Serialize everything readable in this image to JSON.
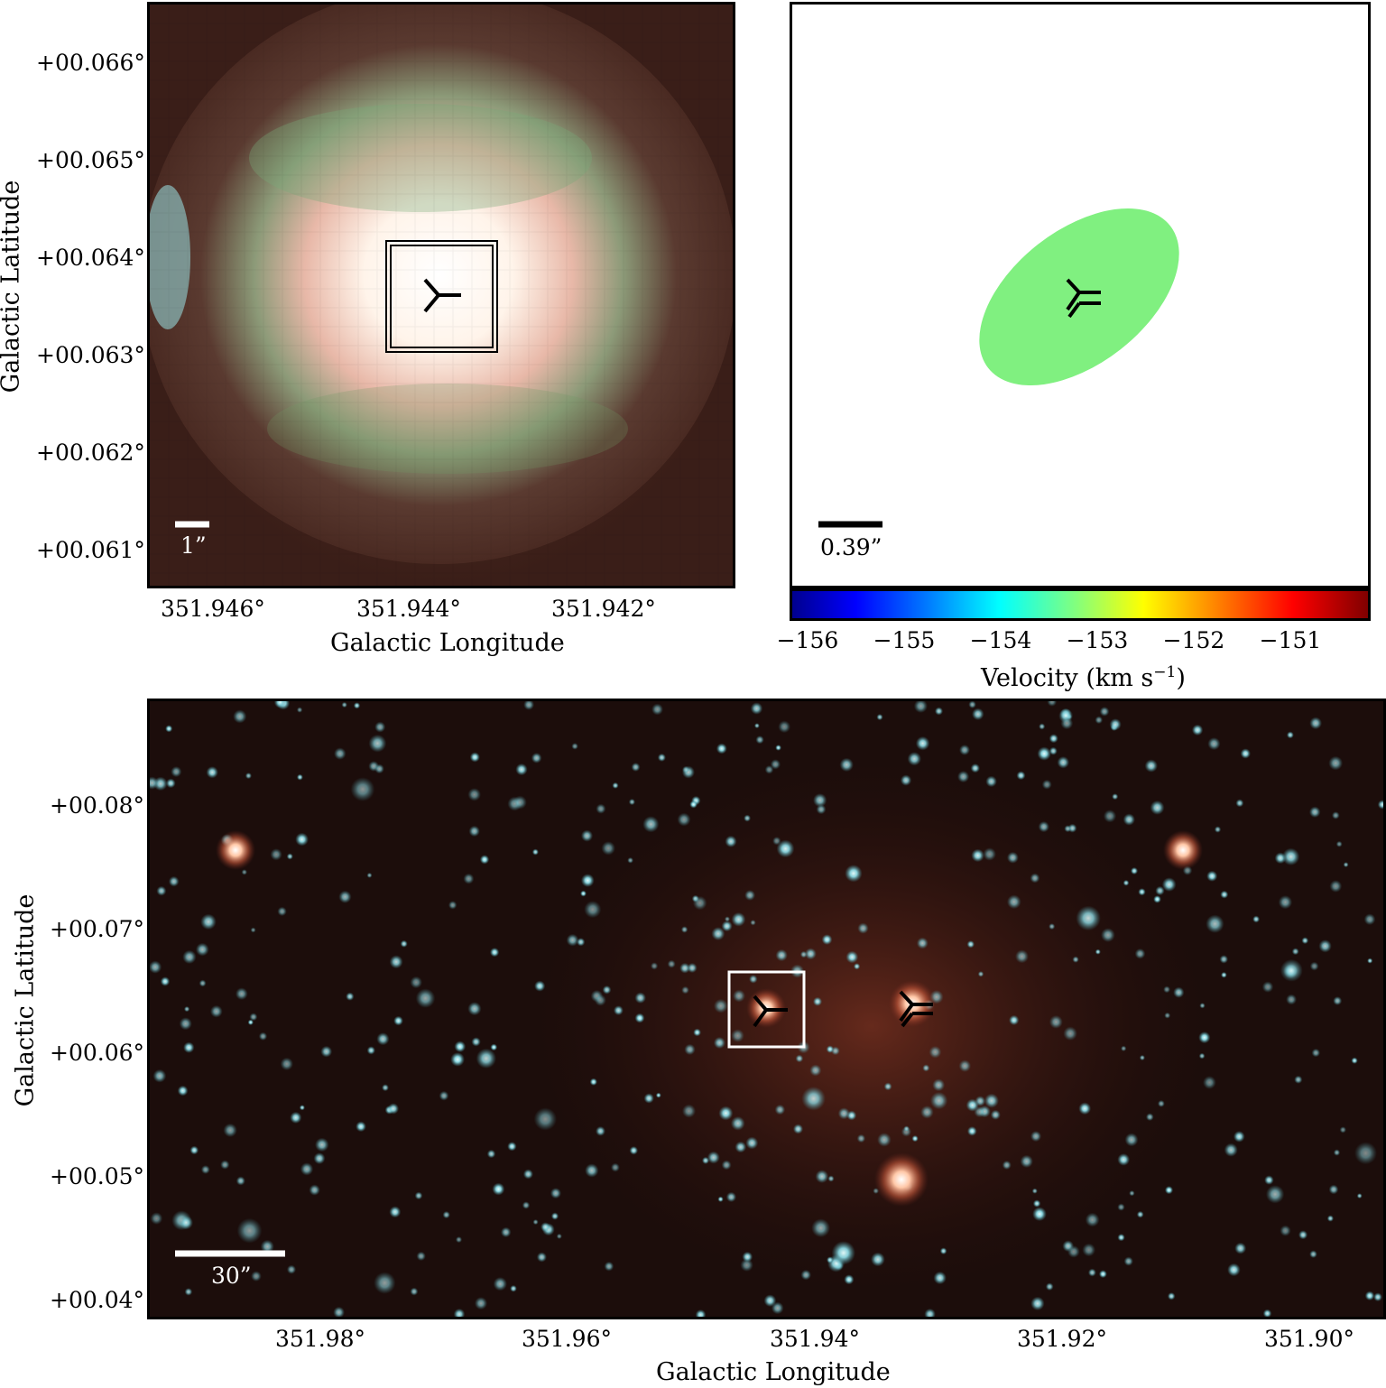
{
  "panel_top_left": {
    "scalebar_label": "1”",
    "x_ticks": [
      "351.946°",
      "351.944°",
      "351.942°"
    ],
    "y_ticks": [
      "+00.066°",
      "+00.065°",
      "+00.064°",
      "+00.063°",
      "+00.062°",
      "+00.061°"
    ],
    "xlabel": "Galactic Longitude",
    "ylabel": "Galactic Latitude"
  },
  "panel_top_right": {
    "scalebar_label": "0.39”",
    "ellipse_color": "#80f080",
    "colorbar_ticks": [
      "−156",
      "−155",
      "−154",
      "−153",
      "−152",
      "−151"
    ],
    "colorbar_label": "Velocity (km s",
    "colorbar_label_sup": "−1",
    "colorbar_label_end": ")"
  },
  "panel_bottom": {
    "scalebar_label": "30”",
    "x_ticks": [
      "351.98°",
      "351.96°",
      "351.94°",
      "351.92°",
      "351.90°"
    ],
    "y_ticks": [
      "+00.08°",
      "+00.07°",
      "+00.06°",
      "+00.05°",
      "+00.04°"
    ],
    "xlabel": "Galactic Longitude",
    "ylabel": "Galactic Latitude"
  }
}
